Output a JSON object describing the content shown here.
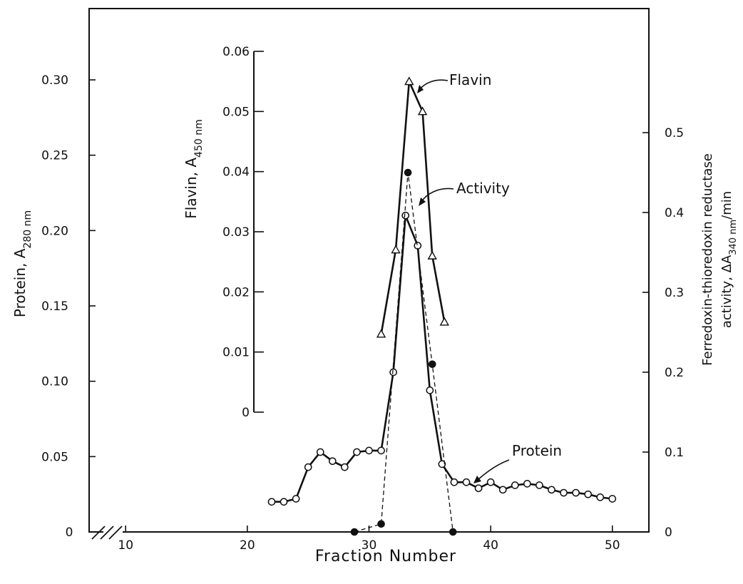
{
  "chart_data": {
    "type": "line",
    "xlabel": "Fraction Number",
    "xlim": [
      7,
      53
    ],
    "x_ticks": [
      10,
      20,
      30,
      40,
      50
    ],
    "x_break_label": "0",
    "axes": {
      "protein": {
        "label_main": "Protein, A",
        "label_sub": "280 nm",
        "ylim": [
          0,
          0.3
        ],
        "ticks": [
          0,
          0.05,
          0.1,
          0.15,
          0.2,
          0.25,
          0.3
        ],
        "tick_labels": [
          "0",
          "0.05",
          "0.10",
          "0.15",
          "0.20",
          "0.25",
          "0.30"
        ]
      },
      "flavin": {
        "label_main": "Flavin, A",
        "label_sub": "450 nm",
        "ylim": [
          0,
          0.06
        ],
        "ticks": [
          0,
          0.01,
          0.02,
          0.03,
          0.04,
          0.05,
          0.06
        ],
        "tick_labels": [
          "0",
          "0.01",
          "0.02",
          "0.03",
          "0.04",
          "0.05",
          "0.06"
        ]
      },
      "activity": {
        "label_line1": "Ferredoxin-thioredoxin reductase",
        "label_line2_main": "activity, ΔA",
        "label_line2_sub": "340 nm",
        "label_line2_tail": "/min",
        "ylim": [
          0,
          0.5
        ],
        "ticks": [
          0,
          0.1,
          0.2,
          0.3,
          0.4,
          0.5
        ],
        "tick_labels": [
          "0",
          "0.1",
          "0.2",
          "0.3",
          "0.4",
          "0.5"
        ]
      }
    },
    "series": [
      {
        "name": "Protein",
        "axis": "protein",
        "marker": "open-circle",
        "x": [
          22,
          23,
          24,
          25,
          26,
          27,
          28,
          29,
          30,
          31,
          32,
          33,
          34,
          35,
          36,
          37,
          38,
          39,
          40,
          41,
          42,
          43,
          44,
          45,
          46,
          47,
          48,
          49,
          50
        ],
        "y": [
          0.02,
          0.02,
          0.022,
          0.043,
          0.053,
          0.047,
          0.043,
          0.053,
          0.054,
          0.054,
          0.106,
          0.21,
          0.19,
          0.094,
          0.045,
          0.033,
          0.033,
          0.029,
          0.033,
          0.028,
          0.031,
          0.032,
          0.031,
          0.028,
          0.026,
          0.026,
          0.025,
          0.023,
          0.022
        ]
      },
      {
        "name": "Flavin",
        "axis": "flavin",
        "marker": "open-triangle",
        "x": [
          31,
          32.2,
          33.3,
          34.4,
          35.2,
          36.2
        ],
        "y": [
          0.013,
          0.027,
          0.055,
          0.05,
          0.026,
          0.015
        ]
      },
      {
        "name": "Activity",
        "axis": "activity",
        "marker": "filled-circle",
        "x": [
          28.8,
          31,
          33.2,
          35.2,
          36.9
        ],
        "y": [
          0,
          0.01,
          0.45,
          0.21,
          0
        ]
      }
    ],
    "annotations": [
      "Flavin",
      "Activity",
      "Protein"
    ],
    "grid": false
  }
}
